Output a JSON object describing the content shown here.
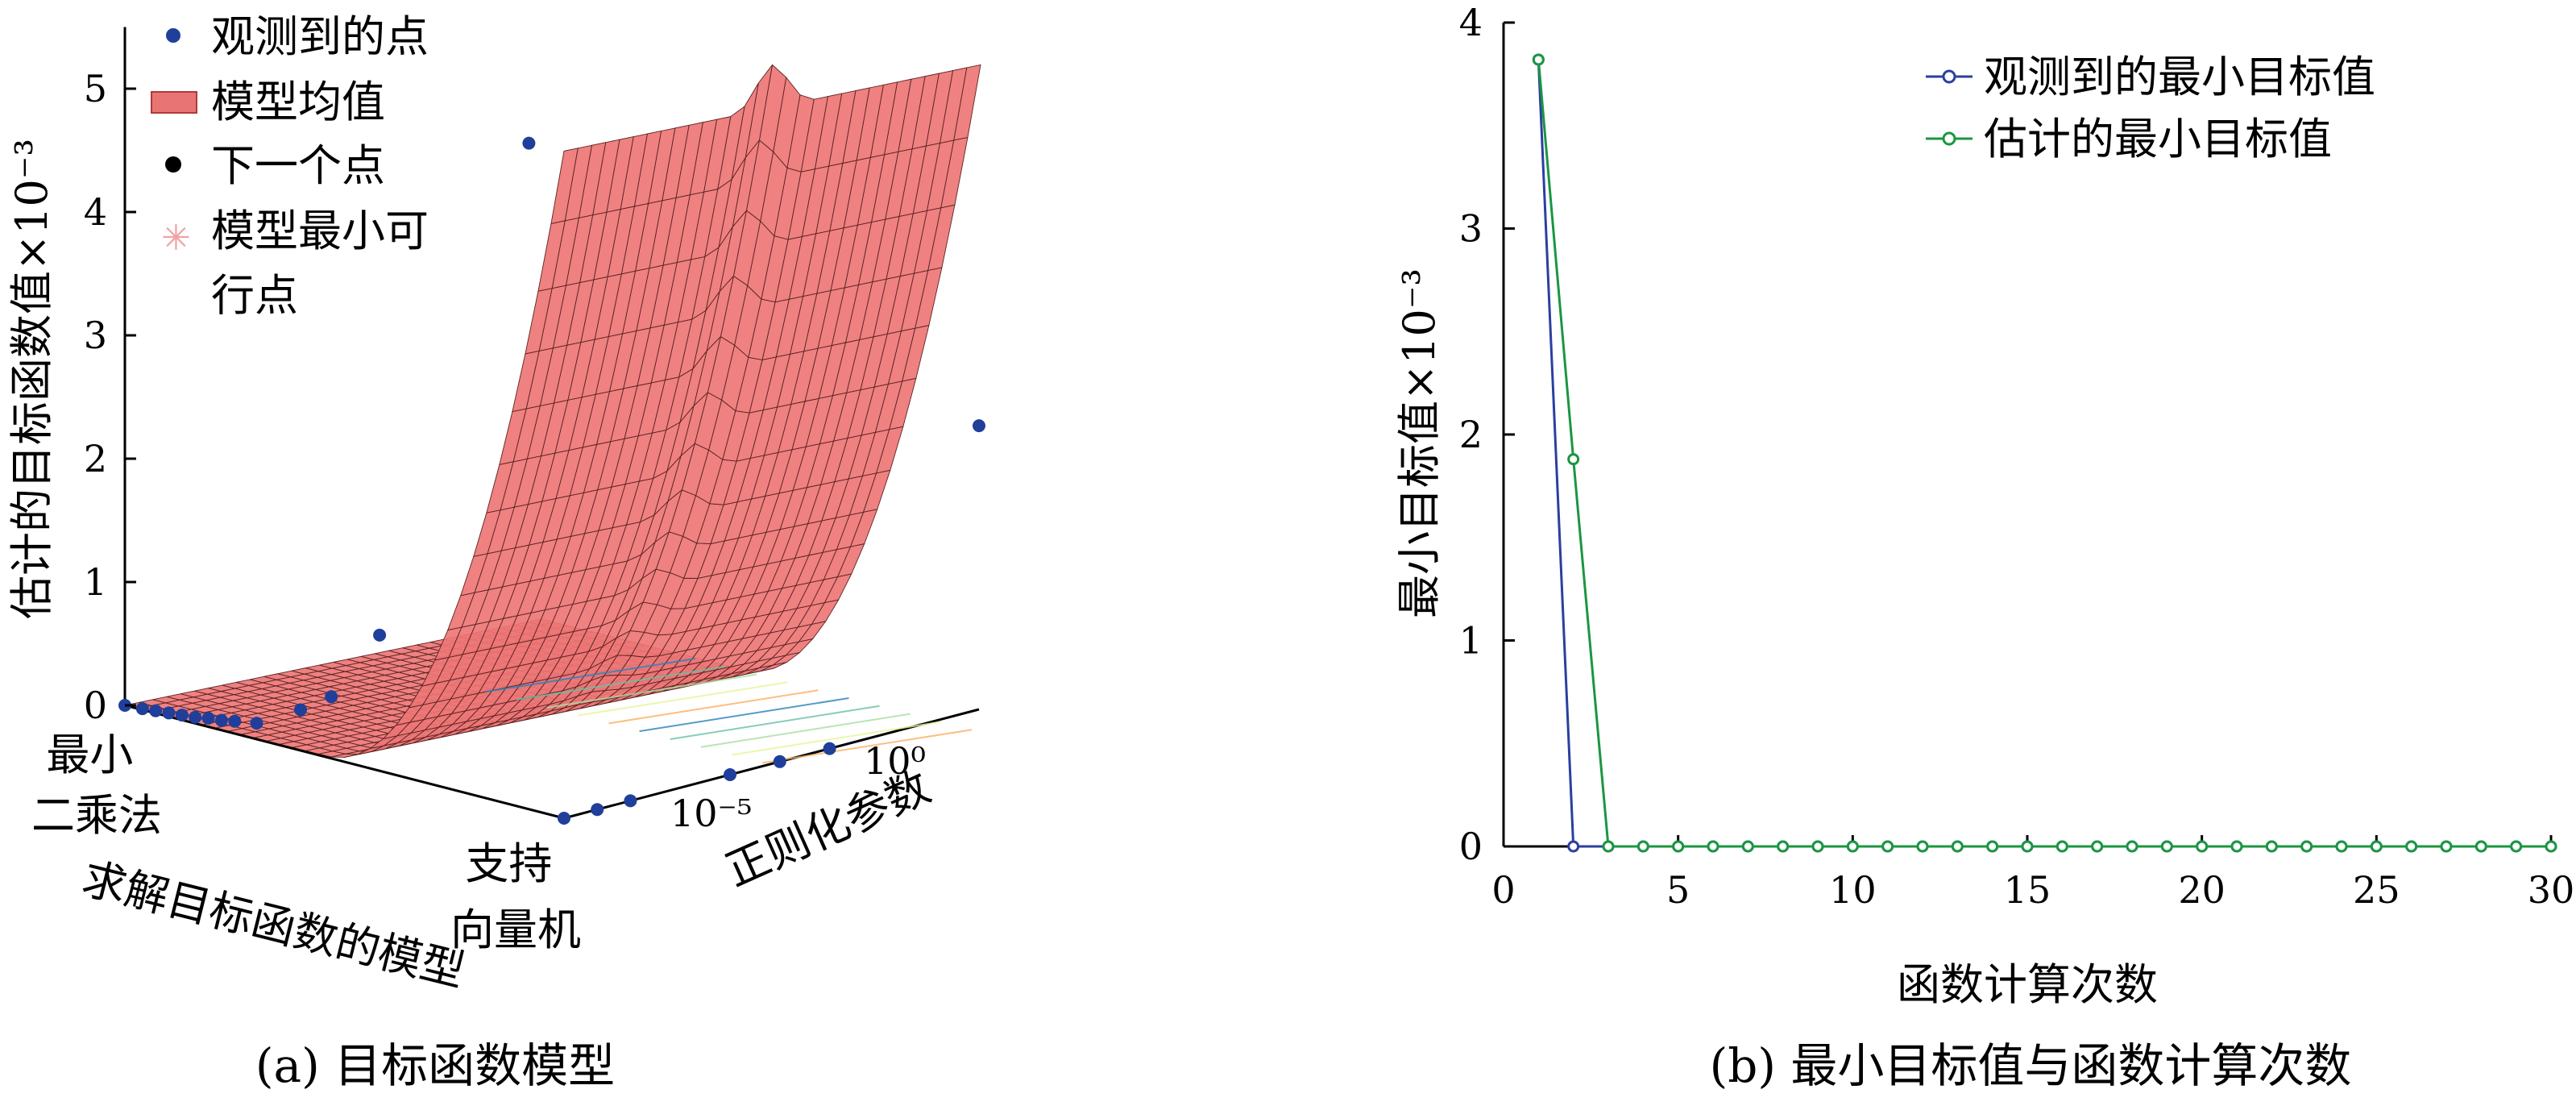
{
  "chart_data": [
    {
      "type": "surface",
      "caption": "(a)  目标函数模型",
      "zlabel": "估计的目标函数值×10⁻³",
      "xlabel": "正则化参数",
      "ylabel": "求解目标函数的模型",
      "x_ticks": [
        "10⁻⁵",
        "10⁰"
      ],
      "y_ticks": [
        {
          "lines": [
            "最小",
            "二乘法"
          ]
        },
        {
          "lines": [
            "支持",
            "向量机"
          ]
        }
      ],
      "z_ticks": [
        0,
        1,
        2,
        3,
        4,
        5
      ],
      "zlim": [
        0,
        5.5
      ],
      "legend": [
        {
          "label": "观测到的点",
          "marker": "dot",
          "color": "#1f3f9b"
        },
        {
          "label": "模型均值",
          "marker": "patch",
          "color": "#e87474"
        },
        {
          "label": "下一个点",
          "marker": "dot",
          "color": "#000000"
        },
        {
          "label": "模型最小可\n行点",
          "marker": "asterisk",
          "color": "#f2a0a0"
        }
      ],
      "surface_color": "#ee7676",
      "observed_points": [
        {
          "pos": 0.0,
          "z": 0.0
        },
        {
          "pos": 0.04,
          "z": 0.01
        },
        {
          "pos": 0.07,
          "z": 0.02
        },
        {
          "pos": 0.1,
          "z": 0.03
        },
        {
          "pos": 0.13,
          "z": 0.04
        },
        {
          "pos": 0.16,
          "z": 0.05
        },
        {
          "pos": 0.19,
          "z": 0.07
        },
        {
          "pos": 0.22,
          "z": 0.08
        },
        {
          "pos": 0.25,
          "z": 0.1
        },
        {
          "pos": 0.3,
          "z": 0.13
        },
        {
          "pos": 0.4,
          "z": 0.33
        },
        {
          "pos": 0.47,
          "z": 0.5
        },
        {
          "pos": 0.58,
          "z": 1.1
        },
        {
          "pos": 0.92,
          "z": 5.4
        }
      ],
      "svm_points": [
        {
          "pos": 0.0,
          "z": 0.0
        },
        {
          "pos": 0.08,
          "z": 0.0
        },
        {
          "pos": 0.16,
          "z": 0.0
        },
        {
          "pos": 0.4,
          "z": 0.0
        },
        {
          "pos": 0.52,
          "z": 0.0
        },
        {
          "pos": 0.64,
          "z": 0.0
        },
        {
          "pos": 1.0,
          "z": 2.3
        }
      ]
    },
    {
      "type": "line",
      "caption": "(b)  最小目标值与函数计算次数",
      "xlabel": "函数计算次数",
      "ylabel": "最小目标值×10⁻³",
      "xlim": [
        0,
        30
      ],
      "ylim": [
        0,
        4
      ],
      "x_ticks": [
        0,
        5,
        10,
        15,
        20,
        25,
        30
      ],
      "y_ticks": [
        0,
        1,
        2,
        3,
        4
      ],
      "legend_position": "top-right",
      "series": [
        {
          "name": "观测到的最小目标值",
          "color": "#2b3f9e",
          "x": [
            1,
            2,
            3,
            4,
            5,
            6,
            7,
            8,
            9,
            10,
            11,
            12,
            13,
            14,
            15,
            16,
            17,
            18,
            19,
            20,
            21,
            22,
            23,
            24,
            25,
            26,
            27,
            28,
            29,
            30
          ],
          "y": [
            3.82,
            0,
            0,
            0,
            0,
            0,
            0,
            0,
            0,
            0,
            0,
            0,
            0,
            0,
            0,
            0,
            0,
            0,
            0,
            0,
            0,
            0,
            0,
            0,
            0,
            0,
            0,
            0,
            0,
            0
          ]
        },
        {
          "name": "估计的最小目标值",
          "color": "#1a9641",
          "x": [
            1,
            2,
            3,
            4,
            5,
            6,
            7,
            8,
            9,
            10,
            11,
            12,
            13,
            14,
            15,
            16,
            17,
            18,
            19,
            20,
            21,
            22,
            23,
            24,
            25,
            26,
            27,
            28,
            29,
            30
          ],
          "y": [
            3.82,
            1.88,
            0,
            0,
            0,
            0,
            0,
            0,
            0,
            0,
            0,
            0,
            0,
            0,
            0,
            0,
            0,
            0,
            0,
            0,
            0,
            0,
            0,
            0,
            0,
            0,
            0,
            0,
            0,
            0
          ]
        }
      ]
    }
  ]
}
